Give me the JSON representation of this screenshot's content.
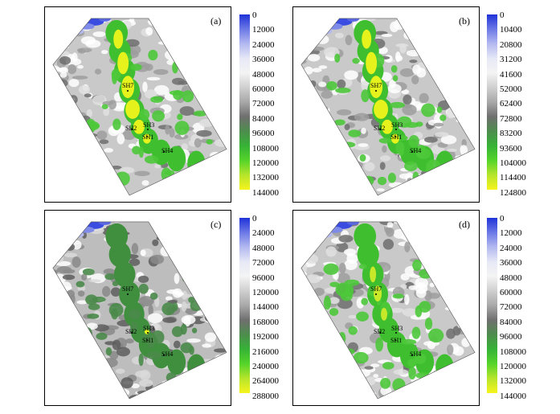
{
  "panels": [
    {
      "label": "(a)",
      "ticks": [
        "0",
        "12000",
        "24000",
        "36000",
        "48000",
        "60000",
        "72000",
        "84000",
        "96000",
        "108000",
        "120000",
        "132000",
        "144000"
      ],
      "variant": "bright",
      "wells": [
        {
          "name": "SH7"
        },
        {
          "name": "SH2"
        },
        {
          "name": "SH3"
        },
        {
          "name": "SH1"
        },
        {
          "name": "SH4"
        }
      ]
    },
    {
      "label": "(b)",
      "ticks": [
        "0",
        "10400",
        "20800",
        "31200",
        "41600",
        "52000",
        "62400",
        "72800",
        "83200",
        "93600",
        "104000",
        "114400",
        "124800"
      ],
      "variant": "bright",
      "wells": [
        {
          "name": "SH7"
        },
        {
          "name": "SH2"
        },
        {
          "name": "SH3"
        },
        {
          "name": "SH1"
        },
        {
          "name": "SH4"
        }
      ]
    },
    {
      "label": "(c)",
      "ticks": [
        "0",
        "24000",
        "48000",
        "72000",
        "96000",
        "120000",
        "144000",
        "168000",
        "192000",
        "216000",
        "240000",
        "264000",
        "288000"
      ],
      "variant": "dark",
      "wells": [
        {
          "name": "SH7"
        },
        {
          "name": "SH2"
        },
        {
          "name": "SH3"
        },
        {
          "name": "SH1"
        },
        {
          "name": "SH4"
        }
      ]
    },
    {
      "label": "(d)",
      "ticks": [
        "0",
        "12000",
        "24000",
        "36000",
        "48000",
        "60000",
        "72000",
        "84000",
        "96000",
        "108000",
        "120000",
        "132000",
        "144000"
      ],
      "variant": "medium",
      "wells": [
        {
          "name": "SH7"
        },
        {
          "name": "SH2"
        },
        {
          "name": "SH3"
        },
        {
          "name": "SH1"
        },
        {
          "name": "SH4"
        }
      ]
    }
  ],
  "colorscale": [
    "#1f32d8",
    "#6b78e6",
    "#b3b9f0",
    "#e6e8f6",
    "#f4f4f4",
    "#cfcfcf",
    "#a8a8a8",
    "#6f6f6f",
    "#4d8d4d",
    "#36b336",
    "#55d42a",
    "#b7e52b",
    "#f6f41c"
  ]
}
